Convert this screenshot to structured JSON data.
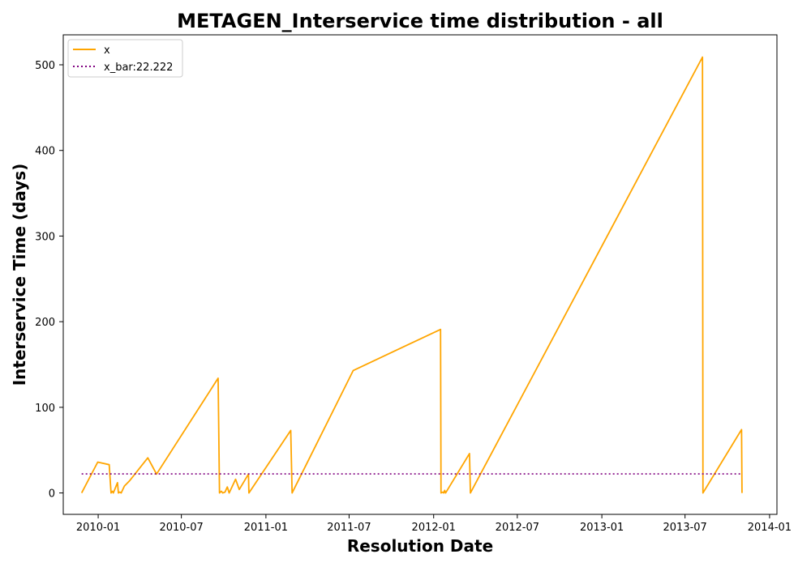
{
  "chart_data": {
    "type": "line",
    "title": "METAGEN_Interservice time distribution - all",
    "xlabel": "Resolution Date",
    "ylabel": "Interservice Time (days)",
    "x_tick_labels": [
      "2010-01",
      "2010-07",
      "2011-01",
      "2011-07",
      "2012-01",
      "2012-07",
      "2013-01",
      "2013-07",
      "2014-01"
    ],
    "x_tick_dates": [
      "2010-01-01",
      "2010-07-01",
      "2011-01-01",
      "2011-07-01",
      "2012-01-01",
      "2012-07-01",
      "2013-01-01",
      "2013-07-01",
      "2014-01-01"
    ],
    "y_ticks": [
      0,
      100,
      200,
      300,
      400,
      500
    ],
    "xlim": [
      "2009-10-17",
      "2014-01-17"
    ],
    "ylim": [
      -25,
      535
    ],
    "grid": false,
    "legend_position": "top-left",
    "legend": [
      "x",
      "x_bar:22.222"
    ],
    "series": [
      {
        "name": "x",
        "color": "#ffa500",
        "style": "solid",
        "points": [
          [
            "2009-11-26",
            0
          ],
          [
            "2009-12-31",
            36
          ],
          [
            "2010-01-25",
            33
          ],
          [
            "2010-01-29",
            0
          ],
          [
            "2010-02-01",
            2
          ],
          [
            "2010-02-03",
            0
          ],
          [
            "2010-02-12",
            12
          ],
          [
            "2010-02-14",
            0
          ],
          [
            "2010-02-17",
            1
          ],
          [
            "2010-02-20",
            0
          ],
          [
            "2010-02-27",
            8
          ],
          [
            "2010-03-10",
            14
          ],
          [
            "2010-04-19",
            41
          ],
          [
            "2010-05-08",
            22
          ],
          [
            "2010-09-19",
            134
          ],
          [
            "2010-09-22",
            0
          ],
          [
            "2010-09-26",
            2
          ],
          [
            "2010-09-29",
            0
          ],
          [
            "2010-10-04",
            1
          ],
          [
            "2010-10-09",
            7
          ],
          [
            "2010-10-13",
            0
          ],
          [
            "2010-10-27",
            16
          ],
          [
            "2010-11-04",
            4
          ],
          [
            "2010-11-24",
            22
          ],
          [
            "2010-11-25",
            0
          ],
          [
            "2011-02-24",
            73
          ],
          [
            "2011-02-27",
            0
          ],
          [
            "2011-07-10",
            143
          ],
          [
            "2012-01-16",
            191
          ],
          [
            "2012-01-17",
            0
          ],
          [
            "2012-01-21",
            1
          ],
          [
            "2012-01-23",
            0
          ],
          [
            "2012-01-25",
            3
          ],
          [
            "2012-01-27",
            0
          ],
          [
            "2012-03-19",
            46
          ],
          [
            "2012-03-21",
            0
          ],
          [
            "2013-08-08",
            509
          ],
          [
            "2013-08-09",
            0
          ],
          [
            "2013-11-01",
            74
          ],
          [
            "2013-11-02",
            0
          ]
        ]
      },
      {
        "name": "x_bar:22.222",
        "color": "#800080",
        "style": "dotted",
        "points": [
          [
            "2009-11-26",
            22.222
          ],
          [
            "2013-11-02",
            22.222
          ]
        ]
      }
    ]
  }
}
